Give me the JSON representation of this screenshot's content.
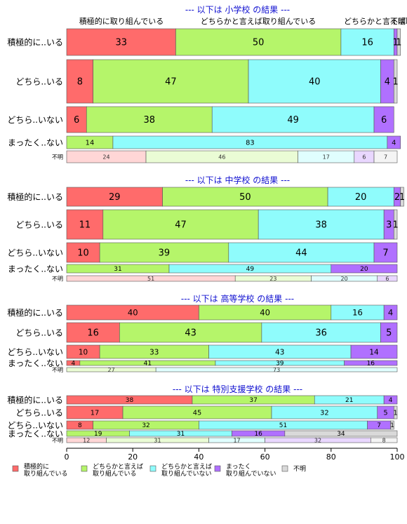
{
  "top_labels": [
    "積極的に取り組んでいる",
    "どちらかと言えば取り組んでいる",
    "どちらかと言えば取",
    "不明"
  ],
  "colors": [
    "#ff6b6b",
    "#b5f56a",
    "#8ffcfc",
    "#b070ff",
    "#d9d9d9"
  ],
  "chart_data": {
    "type": "bar",
    "stacked": true,
    "orientation": "horizontal",
    "xlim": [
      0,
      100
    ],
    "xticks": [
      "0",
      "20",
      "40",
      "60",
      "80",
      "100"
    ],
    "legend": {
      "placement": "bottom",
      "entries": [
        [
          "積極的に",
          "取り組んでいる"
        ],
        [
          "どちらかと言えば",
          "取り組んでいる"
        ],
        [
          "どちらかと言えば",
          "取り組んでいない"
        ],
        [
          "まったく",
          "取り組んでいない"
        ],
        [
          "不明"
        ]
      ]
    },
    "panels": [
      {
        "title": "--- 以下は 小学校 の結果 ---",
        "rows": [
          {
            "label": "積極的に..いる",
            "values": [
              33,
              50,
              16,
              1,
              1
            ],
            "labels": [
              "33",
              "50",
              "16",
              "1",
              "1"
            ]
          },
          {
            "label": "どちら..いる",
            "values": [
              8,
              47,
              40,
              4,
              1
            ],
            "labels": [
              "8",
              "47",
              "40",
              "4",
              "1"
            ]
          },
          {
            "label": "どちら..いない",
            "values": [
              6,
              38,
              49,
              6,
              0
            ],
            "labels": [
              "6",
              "38",
              "49",
              "6",
              ""
            ]
          },
          {
            "label": "まったく..ない",
            "values": [
              0,
              14,
              83,
              4,
              0
            ],
            "labels": [
              "",
              "14",
              "83",
              "4",
              ""
            ]
          },
          {
            "label": "不明",
            "values": [
              24,
              46,
              17,
              6,
              7
            ],
            "labels": [
              "24",
              "46",
              "17",
              "6",
              "7"
            ]
          }
        ]
      },
      {
        "title": "--- 以下は 中学校 の結果 ---",
        "rows": [
          {
            "label": "積極的に..いる",
            "values": [
              29,
              50,
              20,
              2,
              1
            ],
            "labels": [
              "29",
              "50",
              "20",
              "2",
              "1"
            ]
          },
          {
            "label": "どちら..いる",
            "values": [
              11,
              47,
              38,
              3,
              1
            ],
            "labels": [
              "11",
              "47",
              "38",
              "3",
              "1"
            ]
          },
          {
            "label": "どちら..いない",
            "values": [
              10,
              39,
              44,
              7,
              0
            ],
            "labels": [
              "10",
              "39",
              "44",
              "7",
              ""
            ]
          },
          {
            "label": "まったく..ない",
            "values": [
              0,
              31,
              49,
              20,
              0
            ],
            "labels": [
              "",
              "31",
              "49",
              "20",
              ""
            ]
          },
          {
            "label": "不明",
            "values": [
              51,
              23,
              20,
              6,
              0
            ],
            "labels": [
              "51",
              "23",
              "20",
              "6",
              ""
            ]
          }
        ]
      },
      {
        "title": "--- 以下は 高等学校 の結果 ---",
        "rows": [
          {
            "label": "積極的に..いる",
            "values": [
              40,
              40,
              16,
              4,
              0
            ],
            "labels": [
              "40",
              "40",
              "16",
              "4",
              ""
            ]
          },
          {
            "label": "どちら..いる",
            "values": [
              16,
              43,
              36,
              5,
              0
            ],
            "labels": [
              "16",
              "43",
              "36",
              "5",
              ""
            ]
          },
          {
            "label": "どちら..いない",
            "values": [
              10,
              33,
              43,
              14,
              0
            ],
            "labels": [
              "10",
              "33",
              "43",
              "14",
              ""
            ]
          },
          {
            "label": "まったく..ない",
            "values": [
              4,
              41,
              39,
              16,
              0
            ],
            "labels": [
              "4",
              "41",
              "39",
              "16",
              ""
            ]
          },
          {
            "label": "不明",
            "values": [
              0,
              27,
              73,
              0,
              0
            ],
            "labels": [
              "",
              "27",
              "73",
              "",
              ""
            ]
          }
        ]
      },
      {
        "title": "--- 以下は 特別支援学校 の結果 ---",
        "rows": [
          {
            "label": "積極的に..いる",
            "values": [
              38,
              37,
              21,
              4,
              0
            ],
            "labels": [
              "38",
              "37",
              "21",
              "4",
              ""
            ]
          },
          {
            "label": "どちら..いる",
            "values": [
              17,
              45,
              32,
              5,
              1
            ],
            "labels": [
              "17",
              "45",
              "32",
              "5",
              "1"
            ]
          },
          {
            "label": "どちら..いない",
            "values": [
              8,
              32,
              51,
              7,
              1
            ],
            "labels": [
              "8",
              "32",
              "51",
              "7",
              "1"
            ]
          },
          {
            "label": "まったく..ない",
            "values": [
              0,
              19,
              31,
              16,
              34
            ],
            "labels": [
              "",
              "19",
              "31",
              "16",
              "34"
            ]
          },
          {
            "label": "不明",
            "values": [
              12,
              31,
              17,
              32,
              8
            ],
            "labels": [
              "12",
              "31",
              "17",
              "32",
              "8"
            ]
          }
        ]
      }
    ]
  }
}
